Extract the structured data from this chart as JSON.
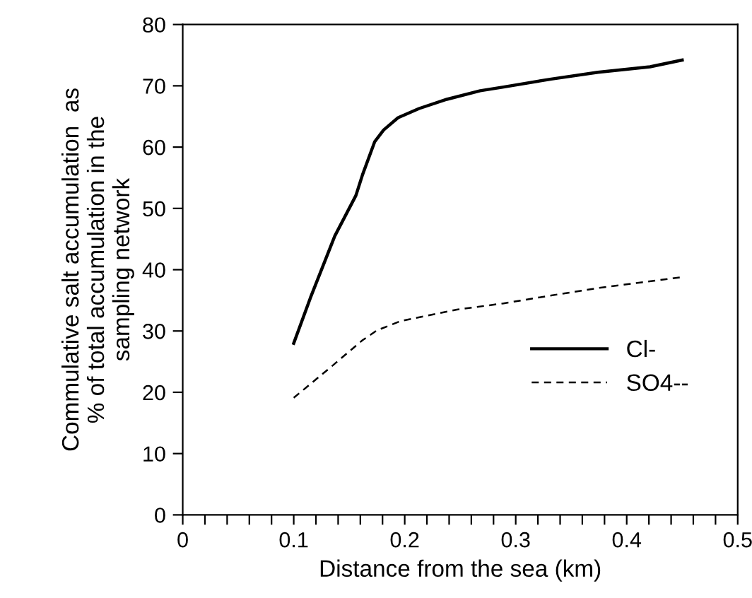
{
  "chart_data": {
    "type": "line",
    "xlabel": "Distance from the sea (km)",
    "ylabel": "Commulative salt accumulation  as\n% of total accumulation in the\nsampling network",
    "xlim": [
      0,
      0.5
    ],
    "xticks": [
      0,
      {
        "value": 0.02,
        "label": null
      },
      {
        "value": 0.04,
        "label": null
      },
      {
        "value": 0.06,
        "label": null
      },
      {
        "value": 0.08,
        "label": null
      },
      0.1,
      {
        "value": 0.12,
        "label": null
      },
      {
        "value": 0.14,
        "label": null
      },
      {
        "value": 0.16,
        "label": null
      },
      {
        "value": 0.18,
        "label": null
      },
      0.2,
      {
        "value": 0.22,
        "label": null
      },
      {
        "value": 0.24,
        "label": null
      },
      {
        "value": 0.26,
        "label": null
      },
      {
        "value": 0.28,
        "label": null
      },
      0.3,
      {
        "value": 0.32,
        "label": null
      },
      {
        "value": 0.34,
        "label": null
      },
      {
        "value": 0.36,
        "label": null
      },
      {
        "value": 0.38,
        "label": null
      },
      0.4,
      {
        "value": 0.42,
        "label": null
      },
      {
        "value": 0.44,
        "label": null
      },
      {
        "value": 0.46,
        "label": null
      },
      {
        "value": 0.48,
        "label": null
      },
      0.5
    ],
    "ylim": [
      0,
      80
    ],
    "yticks": [
      0,
      10,
      20,
      30,
      40,
      50,
      60,
      70,
      80
    ],
    "grid": false,
    "legend": "right",
    "marker": "none",
    "series": [
      {
        "name": "Cl-",
        "color": "#000000",
        "line_style": "solid",
        "x": [
          0.1,
          0.115,
          0.137,
          0.156,
          0.162,
          0.173,
          0.181,
          0.194,
          0.213,
          0.238,
          0.268,
          0.289,
          0.332,
          0.374,
          0.421,
          0.45
        ],
        "values": [
          28,
          35.4,
          45.5,
          52.1,
          55.5,
          60.9,
          62.8,
          64.8,
          66.3,
          67.8,
          69.2,
          69.8,
          71.1,
          72.2,
          73.1,
          74.2
        ]
      },
      {
        "name": "SO4--",
        "color": "#000000",
        "line_style": "dashed",
        "x": [
          0.1,
          0.132,
          0.162,
          0.175,
          0.196,
          0.247,
          0.289,
          0.332,
          0.374,
          0.416,
          0.45
        ],
        "values": [
          19.1,
          23.9,
          28.5,
          30.1,
          31.6,
          33.5,
          34.5,
          35.8,
          37.0,
          38.0,
          38.8
        ]
      }
    ]
  }
}
